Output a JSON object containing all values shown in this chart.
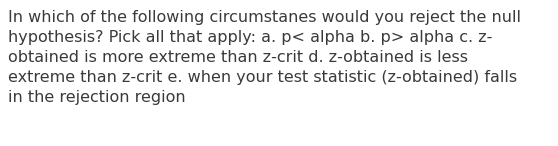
{
  "text": "In which of the following circumstanes would you reject the null\nhypothesis? Pick all that apply: a. p< alpha b. p> alpha c. z-\nobtained is more extreme than z-crit d. z-obtained is less\nextreme than z-crit e. when your test statistic (z-obtained) falls\nin the rejection region",
  "background_color": "#ffffff",
  "text_color": "#3a3a3a",
  "font_size": 11.5,
  "font_family": "DejaVu Sans",
  "fig_width": 5.58,
  "fig_height": 1.46,
  "dpi": 100
}
